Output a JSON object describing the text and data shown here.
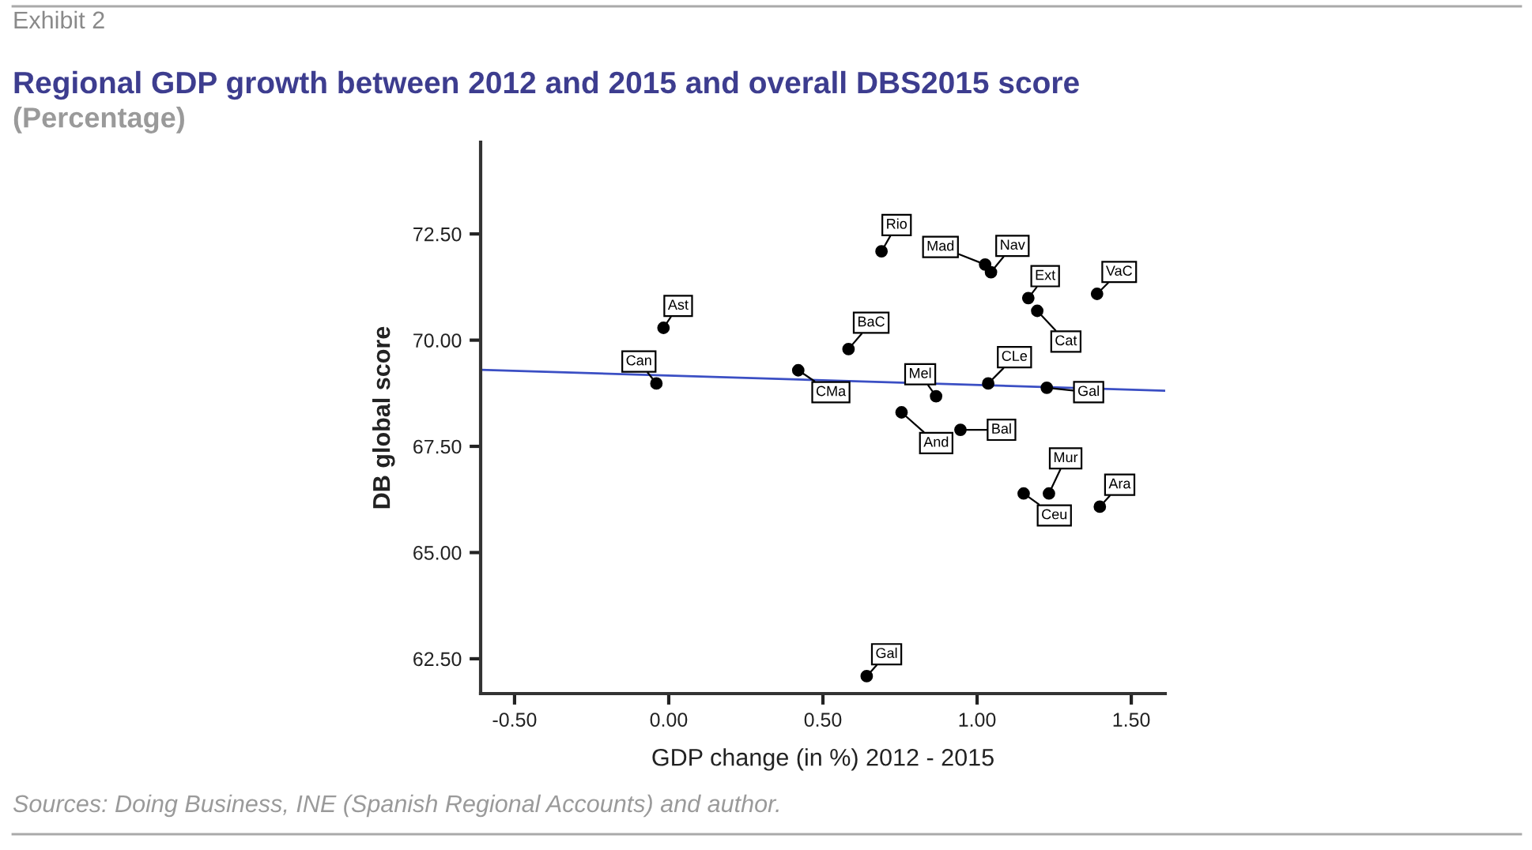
{
  "chart_data": {
    "type": "scatter",
    "title": "Regional GDP growth between 2012 and 2015 and overall DBS2015 score",
    "subtitle": "(Percentage)",
    "xlabel": "GDP change (in %) 2012 - 2015",
    "ylabel": "DB global score",
    "xlim": [
      -0.61,
      1.61
    ],
    "ylim": [
      61.68,
      74.66
    ],
    "xticks": [
      {
        "value": -0.5,
        "label": "-0.50"
      },
      {
        "value": 0,
        "label": "0.00"
      },
      {
        "value": 0.5,
        "label": "0.50"
      },
      {
        "value": 1.0,
        "label": "1.00"
      },
      {
        "value": 1.5,
        "label": "1.50"
      }
    ],
    "yticks": [
      {
        "value": 62.5,
        "label": "62.50"
      },
      {
        "value": 65,
        "label": "65.00"
      },
      {
        "value": 67.5,
        "label": "67.50"
      },
      {
        "value": 70,
        "label": "70.00"
      },
      {
        "value": 72.5,
        "label": "72.50"
      }
    ],
    "grid": false,
    "series": [
      {
        "marker": "circle",
        "color": "#000000",
        "x": [
          -0.017,
          -0.04,
          0.42,
          0.69,
          1.026,
          1.045,
          1.166,
          1.195,
          1.389,
          0.583,
          1.036,
          0.867,
          1.226,
          0.755,
          0.946,
          1.151,
          1.233,
          1.398,
          0.642
        ],
        "values": [
          70.29,
          68.98,
          69.29,
          72.09,
          71.78,
          71.6,
          70.99,
          70.69,
          71.09,
          69.79,
          68.98,
          68.68,
          68.88,
          68.3,
          67.89,
          66.39,
          66.39,
          66.08,
          62.09
        ]
      },
      {
        "type": "line",
        "marker": "none",
        "color": "#3b4fc4",
        "x": [
          -0.61,
          1.61
        ],
        "values": [
          69.3,
          68.81
        ]
      }
    ],
    "annotations": [
      {
        "text": "Ast",
        "x": -0.017,
        "y": 70.29
      },
      {
        "text": "Can",
        "x": -0.04,
        "y": 68.98
      },
      {
        "text": "CMa",
        "x": 0.42,
        "y": 69.29
      },
      {
        "text": "Rio",
        "x": 0.69,
        "y": 72.09
      },
      {
        "text": "Mad",
        "x": 1.026,
        "y": 71.78
      },
      {
        "text": "Nav",
        "x": 1.045,
        "y": 71.6
      },
      {
        "text": "Ext",
        "x": 1.166,
        "y": 70.99
      },
      {
        "text": "Cat",
        "x": 1.195,
        "y": 70.69
      },
      {
        "text": "VaC",
        "x": 1.389,
        "y": 71.09
      },
      {
        "text": "BaC",
        "x": 0.583,
        "y": 69.79
      },
      {
        "text": "CLe",
        "x": 1.036,
        "y": 68.98
      },
      {
        "text": "Mel",
        "x": 0.867,
        "y": 68.68
      },
      {
        "text": "Gal",
        "x": 1.226,
        "y": 68.88
      },
      {
        "text": "And",
        "x": 0.755,
        "y": 68.3
      },
      {
        "text": "Bal",
        "x": 0.946,
        "y": 67.89
      },
      {
        "text": "Ceu",
        "x": 1.151,
        "y": 66.39
      },
      {
        "text": "Mur",
        "x": 1.233,
        "y": 66.39
      },
      {
        "text": "Ara",
        "x": 1.398,
        "y": 66.08
      },
      {
        "text": "Gal",
        "x": 0.642,
        "y": 62.09
      },
      "Exhibit 2",
      "Sources: Doing Business, INE (Spanish Regional Accounts) and author."
    ]
  }
}
